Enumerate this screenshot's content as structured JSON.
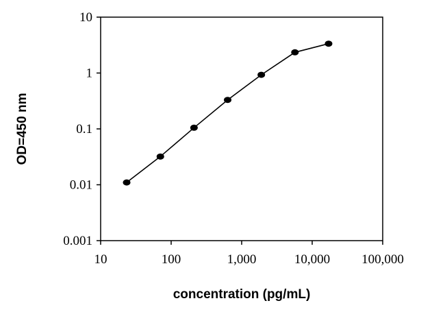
{
  "chart_data": {
    "type": "line",
    "title": "",
    "xlabel": "concentration (pg/mL)",
    "ylabel": "OD=450 nm",
    "x_scale": "log",
    "y_scale": "log",
    "xlim": [
      10,
      100000
    ],
    "ylim": [
      0.001,
      10
    ],
    "x_ticks": [
      10,
      100,
      1000,
      10000,
      100000
    ],
    "x_tick_labels": [
      "10",
      "100",
      "1,000",
      "10,000",
      "100,000"
    ],
    "y_ticks": [
      0.001,
      0.01,
      0.1,
      1,
      10
    ],
    "y_tick_labels": [
      "0.001",
      "0.01",
      "0.1",
      "1",
      "10"
    ],
    "grid": false,
    "legend": "none",
    "marker": "circle",
    "line_color": "#000000",
    "series": [
      {
        "x": [
          23.4,
          70.3,
          210.9,
          632.8,
          1898.4,
          5695.3,
          17086
        ],
        "y": [
          0.011,
          0.032,
          0.105,
          0.33,
          0.93,
          2.35,
          3.35
        ]
      }
    ]
  }
}
